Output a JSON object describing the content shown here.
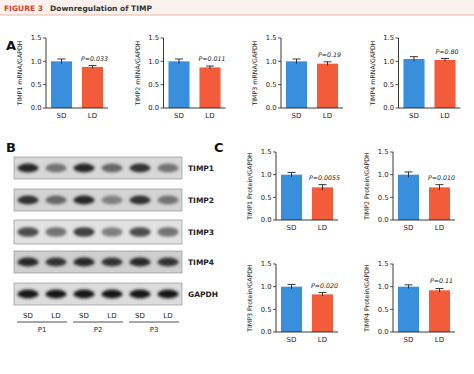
{
  "figure": {
    "label": "FIGURE 3",
    "title": "Downregulation of TIMP"
  },
  "panel_labels": [
    "A",
    "B",
    "C"
  ],
  "blot": {
    "rows": [
      "TIMP1",
      "TIMP2",
      "TIMP3",
      "TIMP4",
      "GAPDH"
    ],
    "lanes": [
      "SD",
      "LD",
      "SD",
      "LD",
      "SD",
      "LD"
    ],
    "groups": [
      "P1",
      "P2",
      "P3"
    ]
  },
  "chart_data": [
    {
      "type": "bar",
      "ylabel": "TIMP1 mRNA/GAPDH",
      "categories": [
        "SD",
        "LD"
      ],
      "values": [
        1.0,
        0.88
      ],
      "errors": [
        0.05,
        0.03
      ],
      "colors": [
        "#3a8fdd",
        "#f25c3b"
      ],
      "ylim": [
        0,
        1.5
      ],
      "yticks": [
        {
          "value": 0,
          "label": "0.0"
        },
        0.5,
        {
          "value": 1,
          "label": "1.0"
        },
        1.5
      ],
      "grid": false,
      "annotations": [
        "P=0.033"
      ]
    },
    {
      "type": "bar",
      "ylabel": "TIMP2 mRNA/GAPDH",
      "categories": [
        "SD",
        "LD"
      ],
      "values": [
        1.0,
        0.87
      ],
      "errors": [
        0.05,
        0.03
      ],
      "colors": [
        "#3a8fdd",
        "#f25c3b"
      ],
      "ylim": [
        0,
        1.5
      ],
      "yticks": [
        {
          "value": 0,
          "label": "0.0"
        },
        0.5,
        {
          "value": 1,
          "label": "1.0"
        },
        1.5
      ],
      "grid": false,
      "annotations": [
        "P=0.011"
      ]
    },
    {
      "type": "bar",
      "ylabel": "TIMP3 mRNA/GAPDH",
      "categories": [
        "SD",
        "LD"
      ],
      "values": [
        1.0,
        0.95
      ],
      "errors": [
        0.05,
        0.04
      ],
      "colors": [
        "#3a8fdd",
        "#f25c3b"
      ],
      "ylim": [
        0,
        1.5
      ],
      "yticks": [
        {
          "value": 0,
          "label": "0.0"
        },
        0.5,
        {
          "value": 1,
          "label": "1.0"
        },
        1.5
      ],
      "grid": false,
      "annotations": [
        "P=0.19"
      ]
    },
    {
      "type": "bar",
      "ylabel": "TIMP4 mRNA/GAPDH",
      "categories": [
        "SD",
        "LD"
      ],
      "values": [
        1.05,
        1.03
      ],
      "errors": [
        0.05,
        0.03
      ],
      "colors": [
        "#3a8fdd",
        "#f25c3b"
      ],
      "ylim": [
        0,
        1.5
      ],
      "yticks": [
        {
          "value": 0,
          "label": "0.0"
        },
        0.5,
        {
          "value": 1,
          "label": "1.0"
        },
        1.5
      ],
      "grid": false,
      "annotations": [
        "P=0.80"
      ]
    },
    {
      "type": "bar",
      "ylabel": "TIMP1 Protein/GAPDH",
      "categories": [
        "SD",
        "LD"
      ],
      "values": [
        1.0,
        0.72
      ],
      "errors": [
        0.05,
        0.06
      ],
      "colors": [
        "#3a8fdd",
        "#f25c3b"
      ],
      "ylim": [
        0,
        1.5
      ],
      "yticks": [
        {
          "value": 0,
          "label": "0.0"
        },
        0.5,
        {
          "value": 1,
          "label": "1.0"
        },
        1.5
      ],
      "grid": false,
      "annotations": [
        "P=0.0055"
      ]
    },
    {
      "type": "bar",
      "ylabel": "TIMP2 Protein/GAPDH",
      "categories": [
        "SD",
        "LD"
      ],
      "values": [
        1.0,
        0.72
      ],
      "errors": [
        0.06,
        0.06
      ],
      "colors": [
        "#3a8fdd",
        "#f25c3b"
      ],
      "ylim": [
        0,
        1.5
      ],
      "yticks": [
        {
          "value": 0,
          "label": "0.0"
        },
        0.5,
        {
          "value": 1,
          "label": "1.0"
        },
        1.5
      ],
      "grid": false,
      "annotations": [
        "P=0.010"
      ]
    },
    {
      "type": "bar",
      "ylabel": "TIMP3 Protein/GAPDH",
      "categories": [
        "SD",
        "LD"
      ],
      "values": [
        1.0,
        0.83
      ],
      "errors": [
        0.05,
        0.04
      ],
      "colors": [
        "#3a8fdd",
        "#f25c3b"
      ],
      "ylim": [
        0,
        1.5
      ],
      "yticks": [
        {
          "value": 0,
          "label": "0.0"
        },
        0.5,
        {
          "value": 1,
          "label": "1.0"
        },
        1.5
      ],
      "grid": false,
      "annotations": [
        "P=0.020"
      ]
    },
    {
      "type": "bar",
      "ylabel": "TIMP4 Protein/GAPDH",
      "categories": [
        "SD",
        "LD"
      ],
      "values": [
        1.0,
        0.92
      ],
      "errors": [
        0.04,
        0.04
      ],
      "colors": [
        "#3a8fdd",
        "#f25c3b"
      ],
      "ylim": [
        0,
        1.5
      ],
      "yticks": [
        {
          "value": 0,
          "label": "0.0"
        },
        0.5,
        {
          "value": 1,
          "label": "1.0"
        },
        1.5
      ],
      "grid": false,
      "annotations": [
        "P=0.11"
      ]
    }
  ]
}
